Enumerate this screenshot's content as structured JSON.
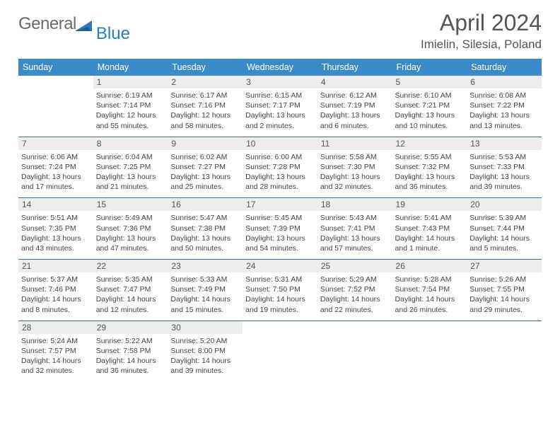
{
  "logo": {
    "grey": "General",
    "blue": "Blue"
  },
  "title": "April 2024",
  "location": "Imielin, Silesia, Poland",
  "colors": {
    "header_bg": "#3b8bc8",
    "header_text": "#ffffff",
    "daynum_bg": "#ededed",
    "rule": "#3b6d96",
    "logo_grey": "#6a6a6a",
    "logo_blue": "#2b7bbf"
  },
  "weekdays": [
    "Sunday",
    "Monday",
    "Tuesday",
    "Wednesday",
    "Thursday",
    "Friday",
    "Saturday"
  ],
  "weeks": [
    [
      null,
      {
        "n": "1",
        "a": "Sunrise: 6:19 AM",
        "b": "Sunset: 7:14 PM",
        "c": "Daylight: 12 hours",
        "d": "and 55 minutes."
      },
      {
        "n": "2",
        "a": "Sunrise: 6:17 AM",
        "b": "Sunset: 7:16 PM",
        "c": "Daylight: 12 hours",
        "d": "and 58 minutes."
      },
      {
        "n": "3",
        "a": "Sunrise: 6:15 AM",
        "b": "Sunset: 7:17 PM",
        "c": "Daylight: 13 hours",
        "d": "and 2 minutes."
      },
      {
        "n": "4",
        "a": "Sunrise: 6:12 AM",
        "b": "Sunset: 7:19 PM",
        "c": "Daylight: 13 hours",
        "d": "and 6 minutes."
      },
      {
        "n": "5",
        "a": "Sunrise: 6:10 AM",
        "b": "Sunset: 7:21 PM",
        "c": "Daylight: 13 hours",
        "d": "and 10 minutes."
      },
      {
        "n": "6",
        "a": "Sunrise: 6:08 AM",
        "b": "Sunset: 7:22 PM",
        "c": "Daylight: 13 hours",
        "d": "and 13 minutes."
      }
    ],
    [
      {
        "n": "7",
        "a": "Sunrise: 6:06 AM",
        "b": "Sunset: 7:24 PM",
        "c": "Daylight: 13 hours",
        "d": "and 17 minutes."
      },
      {
        "n": "8",
        "a": "Sunrise: 6:04 AM",
        "b": "Sunset: 7:25 PM",
        "c": "Daylight: 13 hours",
        "d": "and 21 minutes."
      },
      {
        "n": "9",
        "a": "Sunrise: 6:02 AM",
        "b": "Sunset: 7:27 PM",
        "c": "Daylight: 13 hours",
        "d": "and 25 minutes."
      },
      {
        "n": "10",
        "a": "Sunrise: 6:00 AM",
        "b": "Sunset: 7:28 PM",
        "c": "Daylight: 13 hours",
        "d": "and 28 minutes."
      },
      {
        "n": "11",
        "a": "Sunrise: 5:58 AM",
        "b": "Sunset: 7:30 PM",
        "c": "Daylight: 13 hours",
        "d": "and 32 minutes."
      },
      {
        "n": "12",
        "a": "Sunrise: 5:55 AM",
        "b": "Sunset: 7:32 PM",
        "c": "Daylight: 13 hours",
        "d": "and 36 minutes."
      },
      {
        "n": "13",
        "a": "Sunrise: 5:53 AM",
        "b": "Sunset: 7:33 PM",
        "c": "Daylight: 13 hours",
        "d": "and 39 minutes."
      }
    ],
    [
      {
        "n": "14",
        "a": "Sunrise: 5:51 AM",
        "b": "Sunset: 7:35 PM",
        "c": "Daylight: 13 hours",
        "d": "and 43 minutes."
      },
      {
        "n": "15",
        "a": "Sunrise: 5:49 AM",
        "b": "Sunset: 7:36 PM",
        "c": "Daylight: 13 hours",
        "d": "and 47 minutes."
      },
      {
        "n": "16",
        "a": "Sunrise: 5:47 AM",
        "b": "Sunset: 7:38 PM",
        "c": "Daylight: 13 hours",
        "d": "and 50 minutes."
      },
      {
        "n": "17",
        "a": "Sunrise: 5:45 AM",
        "b": "Sunset: 7:39 PM",
        "c": "Daylight: 13 hours",
        "d": "and 54 minutes."
      },
      {
        "n": "18",
        "a": "Sunrise: 5:43 AM",
        "b": "Sunset: 7:41 PM",
        "c": "Daylight: 13 hours",
        "d": "and 57 minutes."
      },
      {
        "n": "19",
        "a": "Sunrise: 5:41 AM",
        "b": "Sunset: 7:43 PM",
        "c": "Daylight: 14 hours",
        "d": "and 1 minute."
      },
      {
        "n": "20",
        "a": "Sunrise: 5:39 AM",
        "b": "Sunset: 7:44 PM",
        "c": "Daylight: 14 hours",
        "d": "and 5 minutes."
      }
    ],
    [
      {
        "n": "21",
        "a": "Sunrise: 5:37 AM",
        "b": "Sunset: 7:46 PM",
        "c": "Daylight: 14 hours",
        "d": "and 8 minutes."
      },
      {
        "n": "22",
        "a": "Sunrise: 5:35 AM",
        "b": "Sunset: 7:47 PM",
        "c": "Daylight: 14 hours",
        "d": "and 12 minutes."
      },
      {
        "n": "23",
        "a": "Sunrise: 5:33 AM",
        "b": "Sunset: 7:49 PM",
        "c": "Daylight: 14 hours",
        "d": "and 15 minutes."
      },
      {
        "n": "24",
        "a": "Sunrise: 5:31 AM",
        "b": "Sunset: 7:50 PM",
        "c": "Daylight: 14 hours",
        "d": "and 19 minutes."
      },
      {
        "n": "25",
        "a": "Sunrise: 5:29 AM",
        "b": "Sunset: 7:52 PM",
        "c": "Daylight: 14 hours",
        "d": "and 22 minutes."
      },
      {
        "n": "26",
        "a": "Sunrise: 5:28 AM",
        "b": "Sunset: 7:54 PM",
        "c": "Daylight: 14 hours",
        "d": "and 26 minutes."
      },
      {
        "n": "27",
        "a": "Sunrise: 5:26 AM",
        "b": "Sunset: 7:55 PM",
        "c": "Daylight: 14 hours",
        "d": "and 29 minutes."
      }
    ],
    [
      {
        "n": "28",
        "a": "Sunrise: 5:24 AM",
        "b": "Sunset: 7:57 PM",
        "c": "Daylight: 14 hours",
        "d": "and 32 minutes."
      },
      {
        "n": "29",
        "a": "Sunrise: 5:22 AM",
        "b": "Sunset: 7:58 PM",
        "c": "Daylight: 14 hours",
        "d": "and 36 minutes."
      },
      {
        "n": "30",
        "a": "Sunrise: 5:20 AM",
        "b": "Sunset: 8:00 PM",
        "c": "Daylight: 14 hours",
        "d": "and 39 minutes."
      },
      null,
      null,
      null,
      null
    ]
  ]
}
